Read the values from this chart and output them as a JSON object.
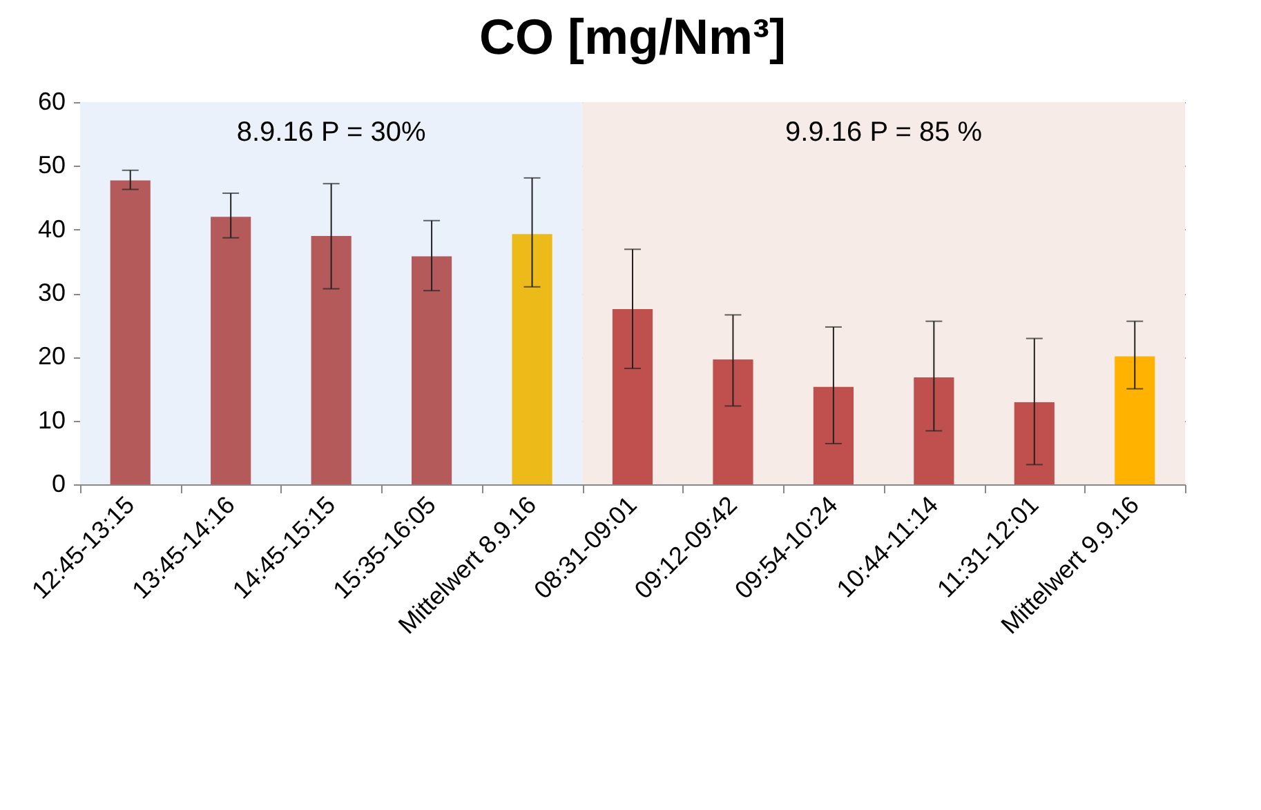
{
  "chart_data": {
    "type": "bar",
    "title": "CO [mg/Nm³]",
    "categories": [
      "12:45-13:15",
      "13:45-14:16",
      "14:45-15:15",
      "15:35-16:05",
      "Mittelwert 8.9.16",
      "08:31-09:01",
      "09:12-09:42",
      "09:54-10:24",
      "10:44-11:14",
      "11:31-12:01",
      "Mittelwert 9.9.16"
    ],
    "values": [
      47.7,
      42.0,
      39.0,
      35.8,
      39.3,
      27.5,
      19.6,
      15.3,
      16.8,
      12.9,
      20.1
    ],
    "colors": [
      "#b45a5a",
      "#b45a5a",
      "#b45a5a",
      "#b45a5a",
      "#ecbb1a",
      "#c0504d",
      "#c0504d",
      "#c0504d",
      "#c0504d",
      "#c0504d",
      "#ffb300"
    ],
    "errors": [
      [
        46.3,
        49.3
      ],
      [
        38.7,
        45.7
      ],
      [
        30.7,
        47.2
      ],
      [
        30.4,
        41.4
      ],
      [
        31.0,
        48.1
      ],
      [
        18.2,
        36.9
      ],
      [
        12.3,
        26.6
      ],
      [
        6.4,
        24.7
      ],
      [
        8.4,
        25.6
      ],
      [
        3.1,
        22.9
      ],
      [
        15.0,
        25.6
      ]
    ],
    "bands": [
      {
        "axis": "x",
        "from": "12:45-13:15",
        "to": "Mittelwert 8.9.16",
        "label": "8.9.16   P = 30%",
        "color": "#eaf1fa"
      },
      {
        "axis": "x",
        "from": "08:31-09:01",
        "to": "Mittelwert 9.9.16",
        "label": "9.9.16   P = 85 %",
        "color": "#f6ebe6"
      }
    ],
    "ylim": [
      0,
      60
    ],
    "yticks": [
      0,
      10,
      20,
      30,
      40,
      50,
      60
    ],
    "grid": "y"
  }
}
